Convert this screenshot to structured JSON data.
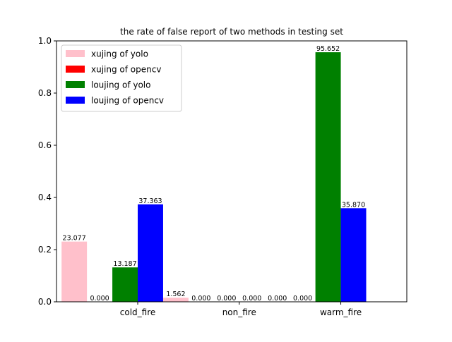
{
  "chart_data": {
    "type": "bar",
    "title": "the rate of false report of two methods in testing set",
    "xlabel": "",
    "ylabel": "",
    "categories": [
      "cold_fire",
      "non_fire",
      "warm_fire"
    ],
    "ylim": [
      0,
      1.0
    ],
    "yticks": [
      "0.0",
      "0.2",
      "0.4",
      "0.6",
      "0.8",
      "1.0"
    ],
    "grid": false,
    "legend_position": "top-left",
    "series": [
      {
        "name": "xujing of yolo",
        "color": "#ffc0cb",
        "values": [
          0.23077,
          0.01562,
          0.0
        ],
        "labels": [
          "23.077",
          "1.562",
          "0.000"
        ]
      },
      {
        "name": "xujing of opencv",
        "color": "#ff0000",
        "values": [
          0.0,
          0.0,
          0.0
        ],
        "labels": [
          "0.000",
          "0.000",
          "0.000"
        ]
      },
      {
        "name": "loujing of yolo",
        "color": "#008000",
        "values": [
          0.13187,
          0.0,
          0.95652
        ],
        "labels": [
          "13.187",
          "0.000",
          "95.652"
        ]
      },
      {
        "name": "loujing of opencv",
        "color": "#0000ff",
        "values": [
          0.37363,
          0.0,
          0.3587
        ],
        "labels": [
          "37.363",
          "0.000",
          "35.870"
        ]
      }
    ]
  }
}
